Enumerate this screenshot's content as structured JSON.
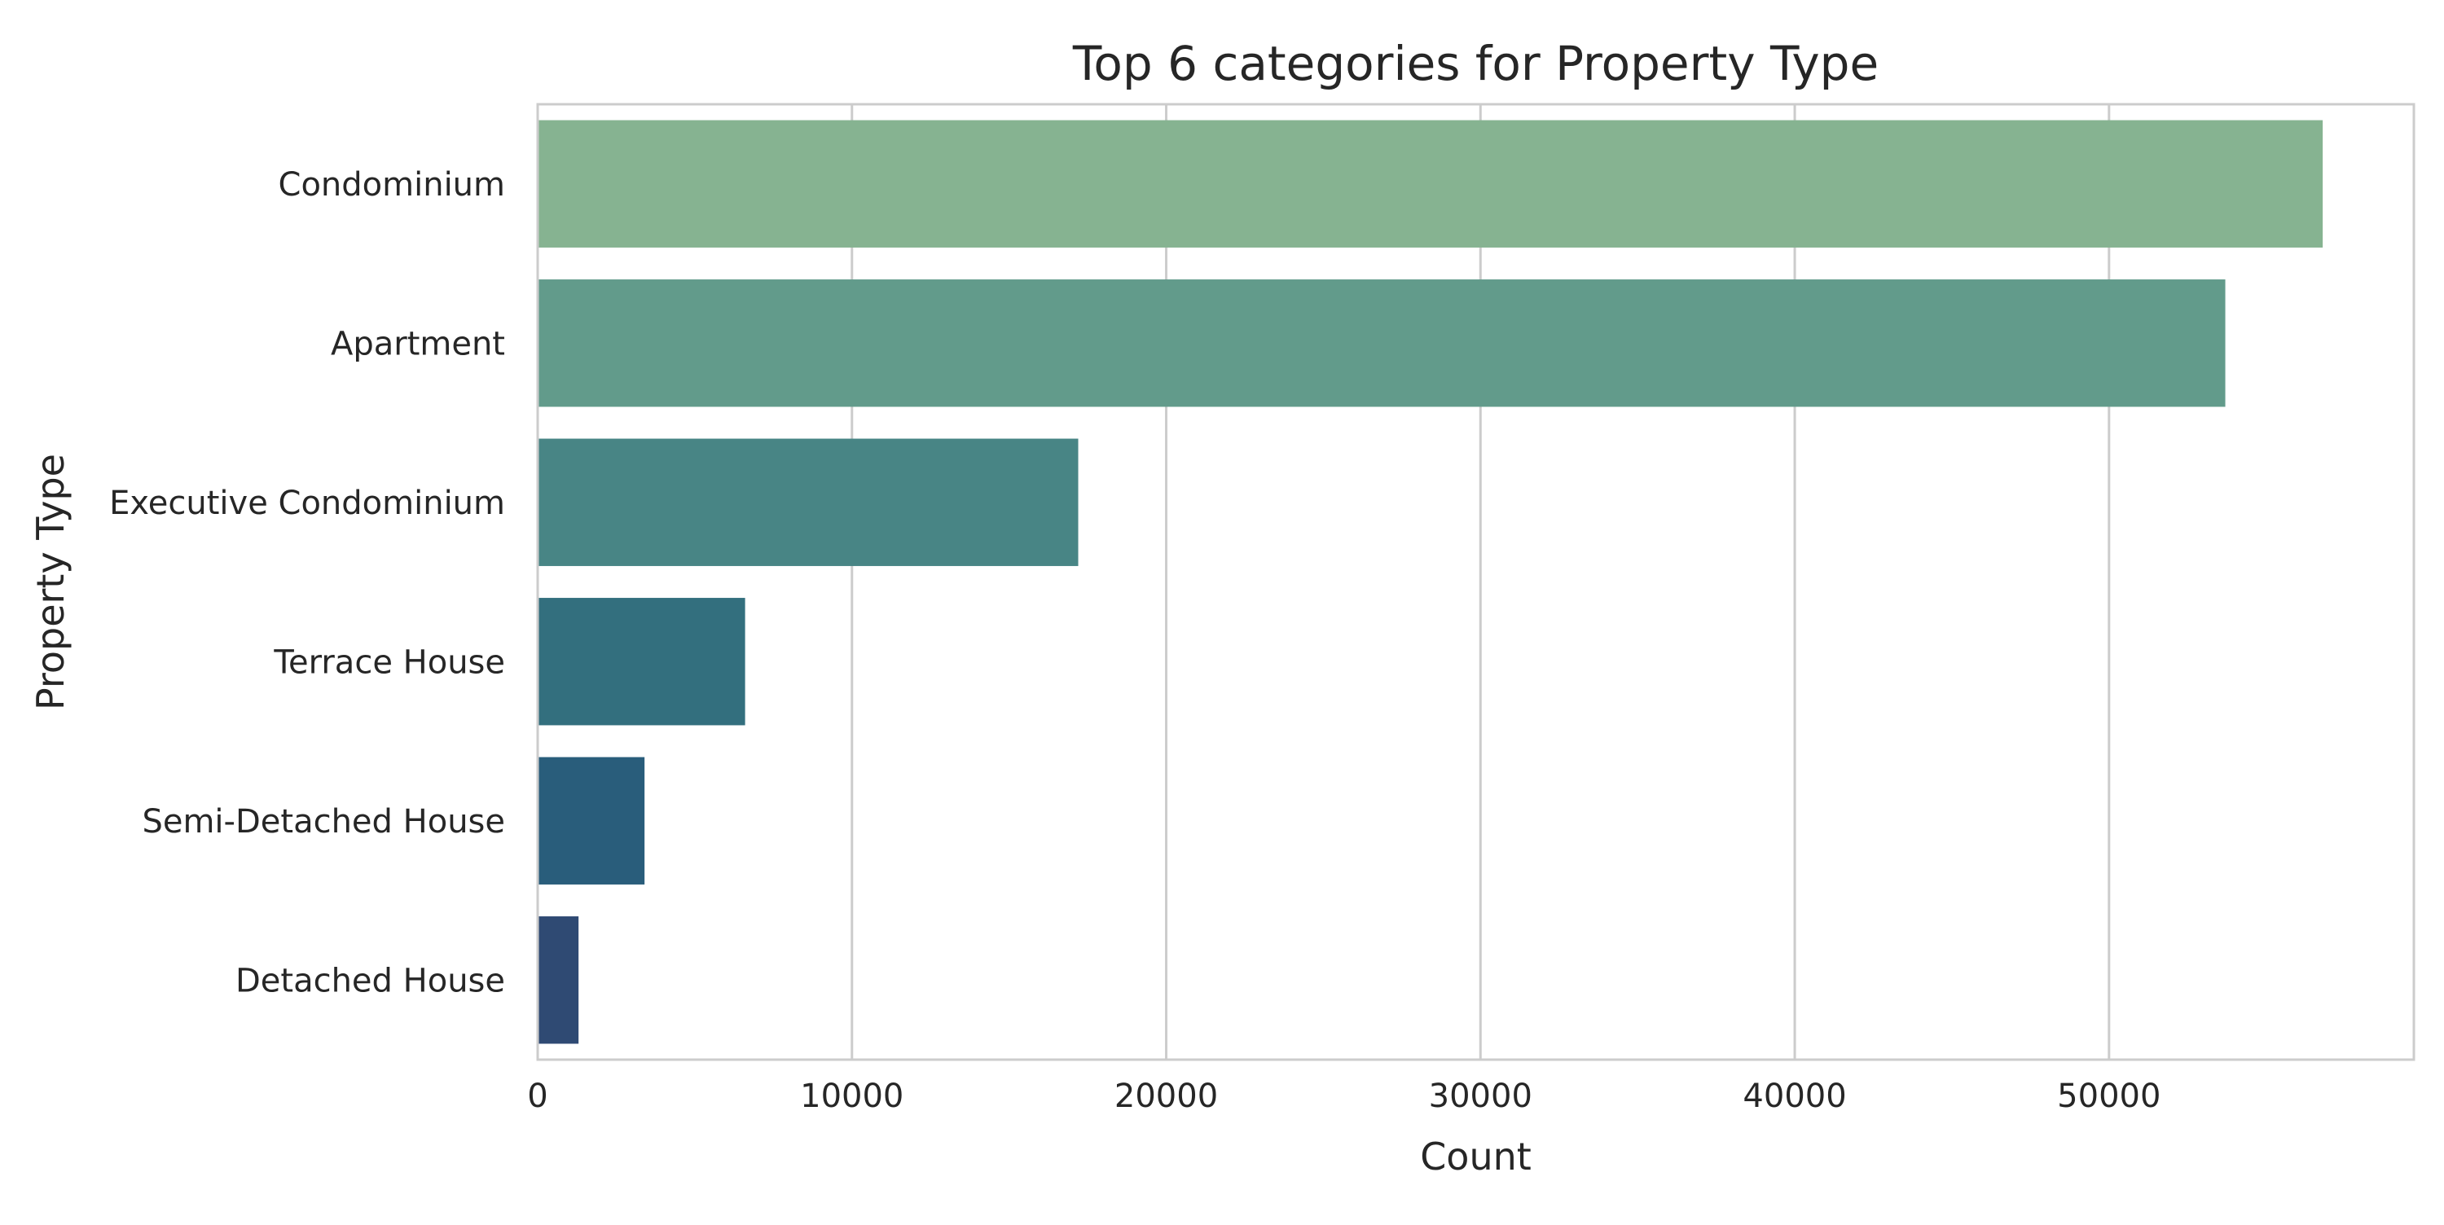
{
  "chart_data": {
    "type": "bar",
    "orientation": "horizontal",
    "title": "Top 6 categories for Property Type",
    "xlabel": "Count",
    "ylabel": "Property Type",
    "categories": [
      "Condominium",
      "Apartment",
      "Executive Condominium",
      "Terrace House",
      "Semi-Detached House",
      "Detached House"
    ],
    "values": [
      56800,
      53700,
      17200,
      6600,
      3400,
      1300
    ],
    "colors": [
      "#86b391",
      "#629b8b",
      "#488585",
      "#336f7e",
      "#295d7b",
      "#2f4a73"
    ],
    "xlim": [
      0,
      59700
    ],
    "xticks": [
      0,
      10000,
      20000,
      30000,
      40000,
      50000
    ],
    "xtick_labels": [
      "0",
      "10000",
      "20000",
      "30000",
      "40000",
      "50000"
    ],
    "grid": "vertical",
    "legend": "none"
  }
}
